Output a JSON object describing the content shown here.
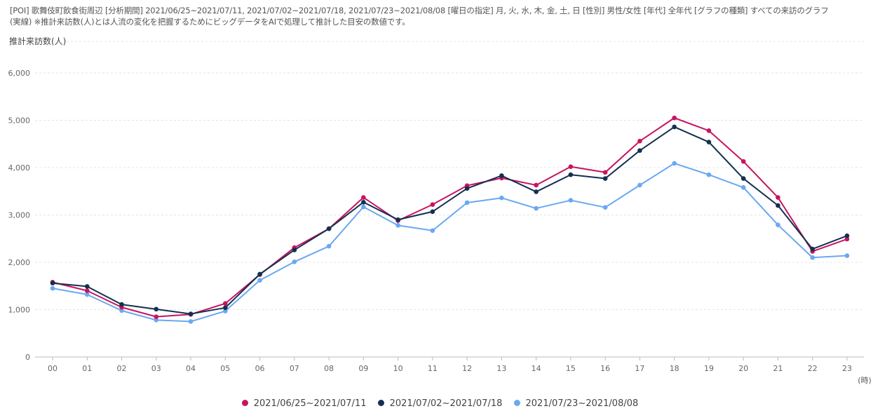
{
  "header": {
    "line1": "[POI] 歌舞伎町飲食街周辺 [分析期間] 2021/06/25~2021/07/11, 2021/07/02~2021/07/18, 2021/07/23~2021/08/08 [曜日の指定] 月, 火, 水, 木, 金, 土, 日 [性別] 男性/女性 [年代] 全年代 [グラフの種類] すべての来訪のグラフ",
    "line2": "(実線) ※推計来訪数(人)とは人流の変化を把握するためにビッグデータをAIで処理して推計した目安の数値です。"
  },
  "chart_data": {
    "type": "line",
    "title": "",
    "ylabel": "推計来訪数(人)",
    "xlabel": "(時)",
    "ylim": [
      0,
      6000
    ],
    "yticks": [
      0,
      1000,
      2000,
      3000,
      4000,
      5000,
      6000
    ],
    "ytick_labels": [
      "0",
      "1,000",
      "2,000",
      "3,000",
      "4,000",
      "5,000",
      "6,000"
    ],
    "grid": true,
    "legend_position": "bottom",
    "categories": [
      "00",
      "01",
      "02",
      "03",
      "04",
      "05",
      "06",
      "07",
      "08",
      "09",
      "10",
      "11",
      "12",
      "13",
      "14",
      "15",
      "16",
      "17",
      "18",
      "19",
      "20",
      "21",
      "22",
      "23"
    ],
    "series": [
      {
        "name": "2021/06/25~2021/07/11",
        "color": "#c8145f",
        "values": [
          1580,
          1400,
          1050,
          850,
          900,
          1130,
          1740,
          2310,
          2710,
          3370,
          2880,
          3220,
          3620,
          3780,
          3630,
          4020,
          3900,
          4560,
          5050,
          4780,
          4130,
          3370,
          2230,
          2490
        ]
      },
      {
        "name": "2021/07/02~2021/07/18",
        "color": "#13304f",
        "values": [
          1560,
          1490,
          1110,
          1010,
          910,
          1040,
          1750,
          2260,
          2710,
          3270,
          2900,
          3070,
          3560,
          3830,
          3490,
          3850,
          3770,
          4360,
          4860,
          4540,
          3770,
          3200,
          2280,
          2560
        ]
      },
      {
        "name": "2021/07/23~2021/08/08",
        "color": "#6aa8f2",
        "values": [
          1450,
          1320,
          980,
          780,
          750,
          970,
          1620,
          2010,
          2340,
          3170,
          2780,
          2670,
          3260,
          3360,
          3140,
          3310,
          3160,
          3630,
          4090,
          3850,
          3580,
          2790,
          2100,
          2140
        ]
      }
    ]
  }
}
